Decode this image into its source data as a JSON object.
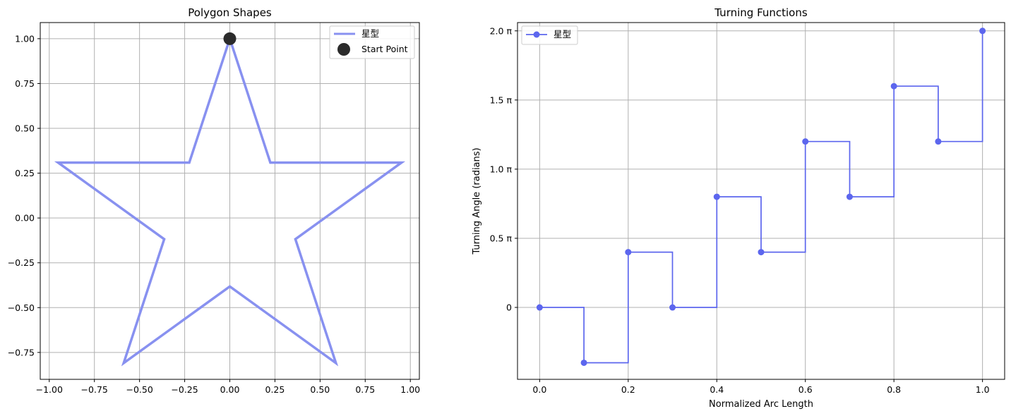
{
  "chart_data": [
    {
      "type": "line",
      "title": "Polygon Shapes",
      "xlabel": "",
      "ylabel": "",
      "xlim": [
        -1.05,
        1.05
      ],
      "ylim": [
        -0.9,
        1.09
      ],
      "xticks": [
        -1.0,
        -0.75,
        -0.5,
        -0.25,
        0.0,
        0.25,
        0.5,
        0.75,
        1.0
      ],
      "xtick_labels": [
        "−1.00",
        "−0.75",
        "−0.50",
        "−0.25",
        "0.00",
        "0.25",
        "0.50",
        "0.75",
        "1.00"
      ],
      "yticks": [
        -0.75,
        -0.5,
        -0.25,
        0.0,
        0.25,
        0.5,
        0.75,
        1.0
      ],
      "ytick_labels": [
        "−0.75",
        "−0.50",
        "−0.25",
        "0.00",
        "0.25",
        "0.50",
        "0.75",
        "1.00"
      ],
      "grid": true,
      "legend_position": "top-right",
      "series": [
        {
          "name": "星型",
          "color": "#8891f0",
          "x": [
            0.0,
            0.2245,
            0.9511,
            0.3633,
            0.5878,
            0.0,
            -0.5878,
            -0.3633,
            -0.9511,
            -0.2245,
            0.0
          ],
          "y": [
            1.0,
            0.309,
            0.309,
            -0.118,
            -0.809,
            -0.382,
            -0.809,
            -0.118,
            0.309,
            0.309,
            1.0
          ]
        },
        {
          "name": "Start Point",
          "color": "#2b2b2b",
          "x": [
            0.0
          ],
          "y": [
            1.0
          ]
        }
      ]
    },
    {
      "type": "line",
      "title": "Turning Functions",
      "xlabel": "Normalized Arc Length",
      "ylabel": "Turning Angle (radians)",
      "xlim": [
        -0.05,
        1.05
      ],
      "ylim_pi": [
        -0.52,
        2.06
      ],
      "xticks": [
        0.0,
        0.2,
        0.4,
        0.6,
        0.8,
        1.0
      ],
      "xtick_labels": [
        "0.0",
        "0.2",
        "0.4",
        "0.6",
        "0.8",
        "1.0"
      ],
      "yticks_pi": [
        0,
        0.5,
        1.0,
        1.5,
        2.0
      ],
      "ytick_labels": [
        "0",
        "0.5 π",
        "1.0 π",
        "1.5 π",
        "2.0 π"
      ],
      "grid": true,
      "legend_position": "top-left",
      "step": "post",
      "series": [
        {
          "name": "星型",
          "color": "#5c66ee",
          "x": [
            0.0,
            0.1,
            0.2,
            0.3,
            0.4,
            0.5,
            0.6,
            0.7,
            0.8,
            0.9,
            1.0
          ],
          "y_pi": [
            0.0,
            -0.4,
            0.4,
            0.0,
            0.8,
            0.4,
            1.2,
            0.8,
            1.6,
            1.2,
            2.0
          ]
        }
      ]
    }
  ]
}
